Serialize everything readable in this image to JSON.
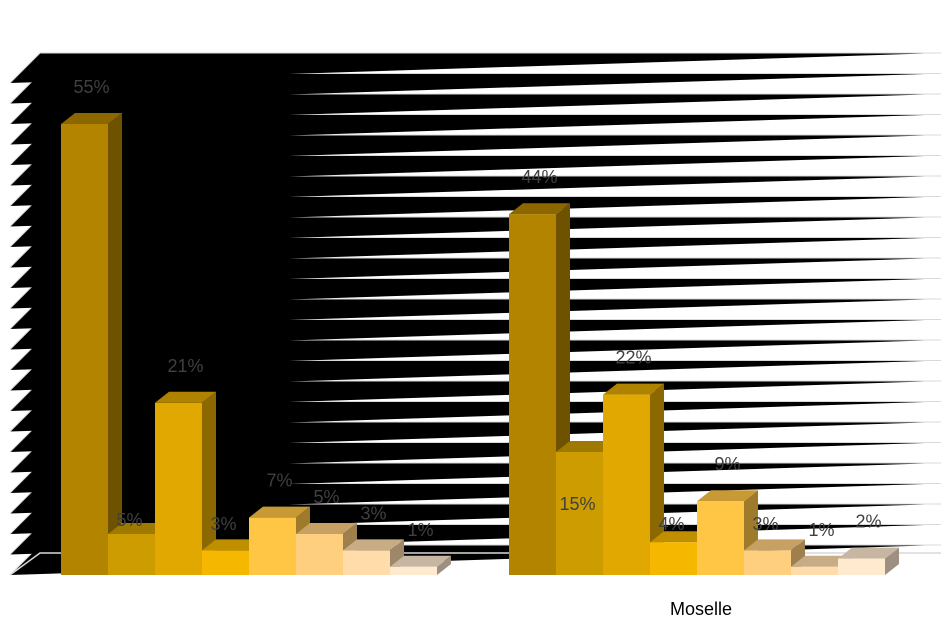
{
  "chart_data": {
    "type": "bar",
    "categories": [
      "",
      "Moselle"
    ],
    "series": [
      {
        "values": [
          55,
          44
        ],
        "color": "#b38400"
      },
      {
        "values": [
          5,
          15
        ],
        "color": "#cc9c00"
      },
      {
        "values": [
          21,
          22
        ],
        "color": "#e0a800"
      },
      {
        "values": [
          3,
          4
        ],
        "color": "#f5b700"
      },
      {
        "values": [
          7,
          9
        ],
        "color": "#ffc545"
      },
      {
        "values": [
          5,
          3
        ],
        "color": "#ffcf80"
      },
      {
        "values": [
          3,
          1
        ],
        "color": "#ffdcaa"
      },
      {
        "values": [
          1,
          2
        ],
        "color": "#ffe9cf"
      }
    ],
    "value_suffix": "%",
    "ylim": [
      0,
      60
    ],
    "grid": true,
    "style": "3d-clustered-column",
    "legend": "none"
  }
}
